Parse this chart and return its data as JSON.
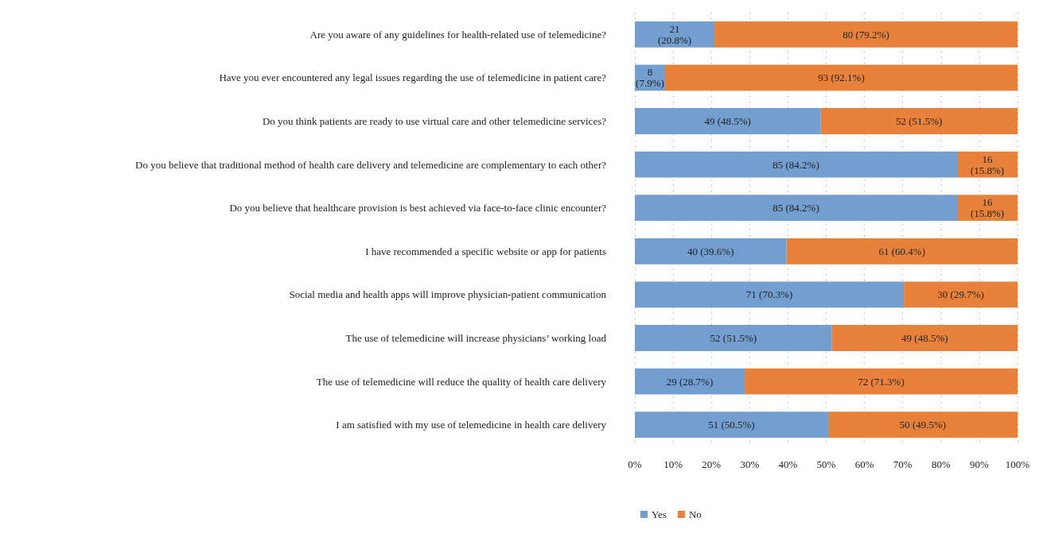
{
  "chart_data": {
    "type": "bar",
    "orientation": "horizontal",
    "stacked": true,
    "categories": [
      "Are you aware of any guidelines for health-related use of telemedicine?",
      "Have you ever encountered any legal issues regarding the use of telemedicine in patient care?",
      "Do you think patients are ready to use virtual care and other telemedicine services?",
      "Do you believe that traditional method of health care delivery and telemedicine are complementary to each other?",
      "Do you believe that healthcare provision is best achieved via face-to-face clinic encounter?",
      "I have recommended a specific website or app for patients",
      "Social media and health apps will improve physician-patient communication",
      "The use of telemedicine will increase physicians’ working load",
      "The use of telemedicine will reduce the quality of health care delivery",
      "I am satisfied with my use of telemedicine in health care delivery"
    ],
    "series": [
      {
        "name": "Yes",
        "color": "#729fcf",
        "values": [
          20.8,
          7.9,
          48.5,
          84.2,
          84.2,
          39.6,
          70.3,
          51.5,
          28.7,
          50.5
        ],
        "value_labels": [
          "21 (20.8%)",
          "8 (7.9%)",
          "49 (48.5%)",
          "85 (84.2%)",
          "85 (84.2%)",
          "40 (39.6%)",
          "71 (70.3%)",
          "52 (51.5%)",
          "29 (28.7%)",
          "51 (50.5%)"
        ]
      },
      {
        "name": "No",
        "color": "#e8813a",
        "values": [
          79.2,
          92.1,
          51.5,
          15.8,
          15.8,
          60.4,
          29.7,
          48.5,
          71.3,
          49.5
        ],
        "value_labels": [
          "80 (79.2%)",
          "93 (92.1%)",
          "52 (51.5%)",
          "16 (15.8%)",
          "16 (15.8%)",
          "61 (60.4%)",
          "30 (29.7%)",
          "49 (48.5%)",
          "72 (71.3%)",
          "50 (49.5%)"
        ]
      }
    ],
    "xlim": [
      0,
      100
    ],
    "xticks": [
      {
        "value": 0,
        "label": "0%"
      },
      {
        "value": 10,
        "label": "10%"
      },
      {
        "value": 20,
        "label": "20%"
      },
      {
        "value": 30,
        "label": "30%"
      },
      {
        "value": 40,
        "label": "40%"
      },
      {
        "value": 50,
        "label": "50%"
      },
      {
        "value": 60,
        "label": "60%"
      },
      {
        "value": 70,
        "label": "70%"
      },
      {
        "value": 80,
        "label": "80%"
      },
      {
        "value": 90,
        "label": "90%"
      },
      {
        "value": 100,
        "label": "100%"
      }
    ],
    "grid": "x",
    "legend": "bottom left"
  }
}
